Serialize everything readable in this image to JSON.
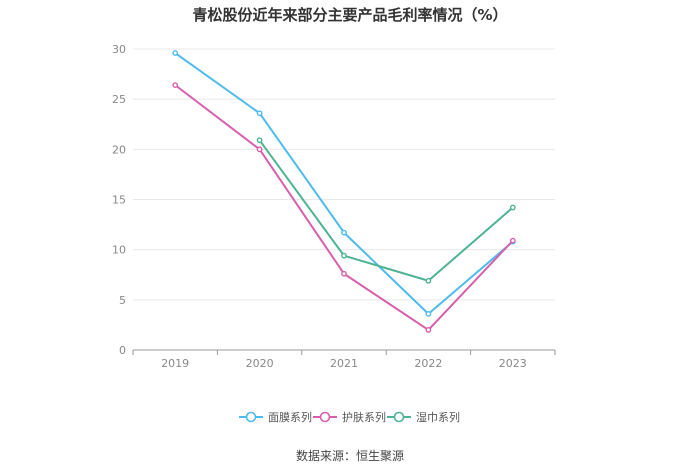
{
  "chart_data": {
    "type": "line",
    "title": "青松股份近年来部分主要产品毛利率情况（%）",
    "categories": [
      "2019",
      "2020",
      "2021",
      "2022",
      "2023"
    ],
    "ylim": [
      0,
      30
    ],
    "yticks": [
      0,
      5,
      10,
      15,
      20,
      25,
      30
    ],
    "grid": true,
    "legend_position": "bottom",
    "series": [
      {
        "name": "面膜系列",
        "color": "#4dbbeb",
        "values": [
          29.6,
          23.6,
          11.7,
          3.6,
          10.8
        ]
      },
      {
        "name": "护肤系列",
        "color": "#d85fac",
        "values": [
          26.4,
          20.0,
          7.6,
          2.0,
          10.9
        ]
      },
      {
        "name": "湿巾系列",
        "color": "#4db391",
        "values": [
          null,
          20.9,
          9.4,
          6.9,
          14.2
        ]
      }
    ]
  },
  "source": "数据来源：恒生聚源"
}
